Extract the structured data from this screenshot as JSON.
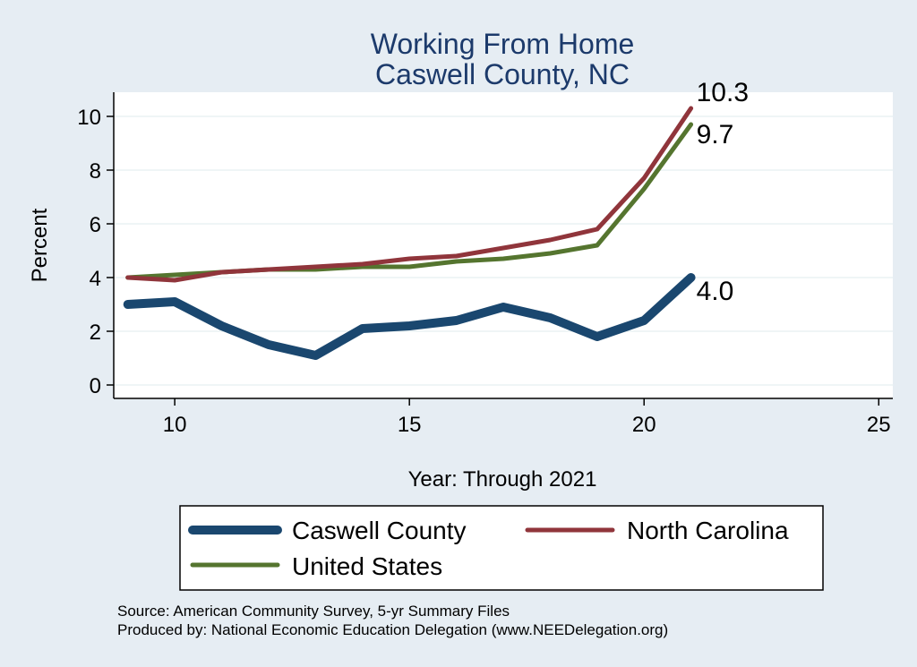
{
  "chart_data": {
    "type": "line",
    "title": "Working From Home",
    "subtitle": "Caswell County, NC",
    "xlabel": "Year: Through 2021",
    "ylabel": "Percent",
    "xlim": [
      8.7,
      25.3
    ],
    "ylim": [
      -0.5,
      10.9
    ],
    "xticks": [
      10,
      15,
      20,
      25
    ],
    "yticks": [
      0,
      2,
      4,
      6,
      8,
      10
    ],
    "grid": true,
    "legend_position": "bottom",
    "series": [
      {
        "name": "Caswell County",
        "color": "#1a476f",
        "x": [
          9,
          10,
          11,
          12,
          13,
          14,
          15,
          16,
          17,
          18,
          19,
          20,
          21
        ],
        "values": [
          3.0,
          3.1,
          2.2,
          1.5,
          1.1,
          2.1,
          2.2,
          2.4,
          2.9,
          2.5,
          1.8,
          2.4,
          4.0
        ],
        "end_label": "4.0"
      },
      {
        "name": "North Carolina",
        "color": "#90353b",
        "x": [
          9,
          10,
          11,
          12,
          13,
          14,
          15,
          16,
          17,
          18,
          19,
          20,
          21
        ],
        "values": [
          4.0,
          3.9,
          4.2,
          4.3,
          4.4,
          4.5,
          4.7,
          4.8,
          5.1,
          5.4,
          5.8,
          7.7,
          10.3
        ],
        "end_label": "10.3"
      },
      {
        "name": "United States",
        "color": "#55752f",
        "x": [
          9,
          10,
          11,
          12,
          13,
          14,
          15,
          16,
          17,
          18,
          19,
          20,
          21
        ],
        "values": [
          4.0,
          4.1,
          4.2,
          4.3,
          4.3,
          4.4,
          4.4,
          4.6,
          4.7,
          4.9,
          5.2,
          7.3,
          9.7
        ],
        "end_label": "9.7"
      }
    ]
  },
  "source": {
    "line1": "Source: American Community Survey, 5-yr Summary Files",
    "line2": "Produced by: National Economic Education Delegation (www.NEEDelegation.org)"
  }
}
